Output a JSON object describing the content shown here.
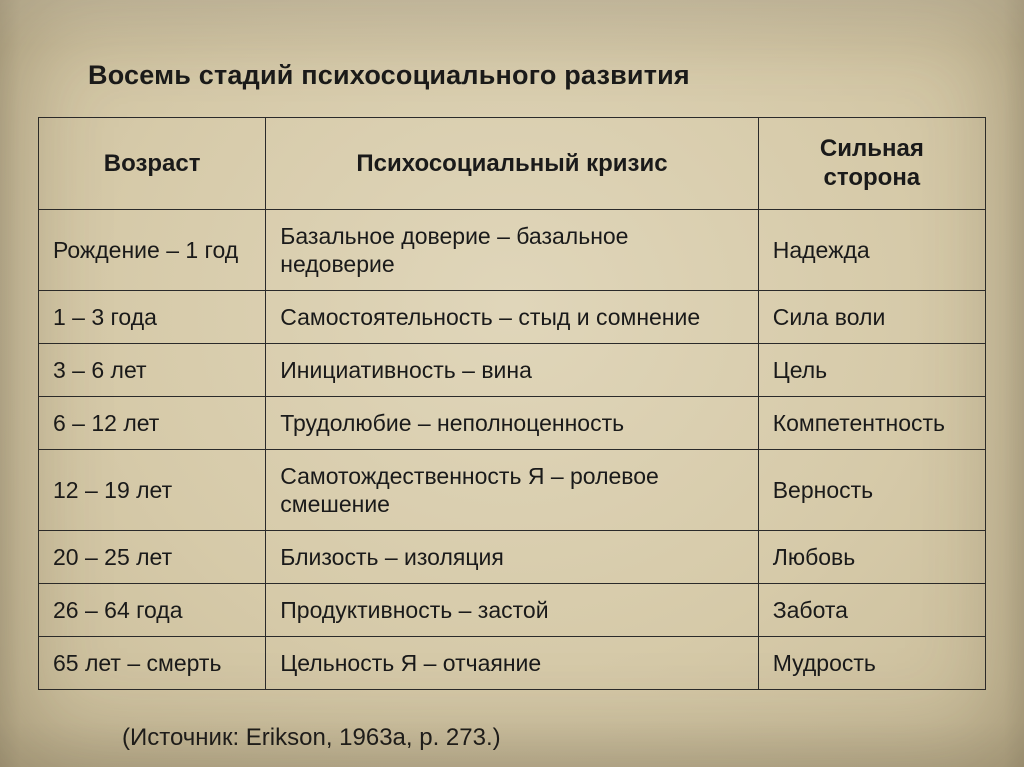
{
  "title": "Восемь стадий психосоциального развития",
  "source": "(Источник: Erikson, 1963а, р. 273.)",
  "table": {
    "type": "table",
    "background_color": "#d8cdb0",
    "border_color": "#2a2a2a",
    "text_color": "#1a1a1a",
    "header_fontsize": 24,
    "cell_fontsize": 23,
    "column_widths_pct": [
      24,
      52,
      24
    ],
    "columns": [
      "Возраст",
      "Психосоциальный кризис",
      "Сильная сторона"
    ],
    "rows": [
      [
        "Рождение – 1 год",
        "Базальное доверие – базальное недоверие",
        "Надежда"
      ],
      [
        "1 – 3 года",
        "Самостоятельность – стыд и сомнение",
        "Сила воли"
      ],
      [
        "3 – 6 лет",
        "Инициативность – вина",
        "Цель"
      ],
      [
        "6 – 12 лет",
        "Трудолюбие – неполноценность",
        "Компетентность"
      ],
      [
        "12 – 19 лет",
        "Самотождественность Я – ролевое смешение",
        "Верность"
      ],
      [
        "20 – 25 лет",
        "Близость – изоляция",
        "Любовь"
      ],
      [
        "26 – 64 года",
        "Продуктивность – застой",
        "Забота"
      ],
      [
        "65 лет – смерть",
        "Цельность Я – отчаяние",
        "Мудрость"
      ]
    ]
  }
}
